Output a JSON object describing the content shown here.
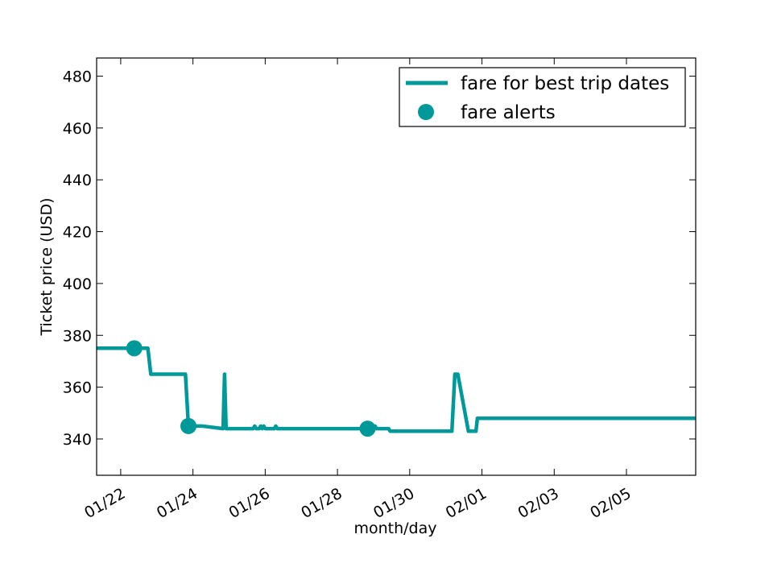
{
  "chart_data": {
    "type": "line",
    "xlabel": "month/day",
    "ylabel": "Ticket price (USD)",
    "xlim": [
      "2015-01-21 08:00",
      "2015-02-06 22:00"
    ],
    "ylim": [
      326,
      487
    ],
    "x_tick_labels": [
      "01/22",
      "01/24",
      "01/26",
      "01/28",
      "01/30",
      "02/01",
      "02/03",
      "02/05"
    ],
    "x_tick_dates": [
      "2015-01-22",
      "2015-01-24",
      "2015-01-26",
      "2015-01-28",
      "2015-01-30",
      "2015-02-01",
      "2015-02-03",
      "2015-02-05"
    ],
    "y_ticks": [
      340,
      360,
      380,
      400,
      420,
      440,
      460,
      480
    ],
    "legend": {
      "position": "top-right",
      "entries": [
        "fare for best trip dates",
        "fare alerts"
      ]
    },
    "color": "#009999",
    "series": [
      {
        "name": "fare for best trip dates",
        "kind": "line",
        "points": [
          {
            "x": "2015-01-21 08:00",
            "y": 375
          },
          {
            "x": "2015-01-22 18:00",
            "y": 375
          },
          {
            "x": "2015-01-22 20:00",
            "y": 365
          },
          {
            "x": "2015-01-23 19:00",
            "y": 365
          },
          {
            "x": "2015-01-23 21:00",
            "y": 345
          },
          {
            "x": "2015-01-24 06:00",
            "y": 345
          },
          {
            "x": "2015-01-24 20:00",
            "y": 344
          },
          {
            "x": "2015-01-24 21:00",
            "y": 365
          },
          {
            "x": "2015-01-24 22:00",
            "y": 344
          },
          {
            "x": "2015-01-25 16:00",
            "y": 344
          },
          {
            "x": "2015-01-25 17:00",
            "y": 345
          },
          {
            "x": "2015-01-25 18:00",
            "y": 344
          },
          {
            "x": "2015-01-25 20:00",
            "y": 344
          },
          {
            "x": "2015-01-25 21:00",
            "y": 345
          },
          {
            "x": "2015-01-25 22:00",
            "y": 344
          },
          {
            "x": "2015-01-25 23:00",
            "y": 345
          },
          {
            "x": "2015-01-26 00:00",
            "y": 344
          },
          {
            "x": "2015-01-26 06:00",
            "y": 344
          },
          {
            "x": "2015-01-26 07:00",
            "y": 345
          },
          {
            "x": "2015-01-26 08:00",
            "y": 344
          },
          {
            "x": "2015-01-29 00:00",
            "y": 344
          },
          {
            "x": "2015-01-29 01:00",
            "y": 345
          },
          {
            "x": "2015-01-29 02:00",
            "y": 344
          },
          {
            "x": "2015-01-29 10:00",
            "y": 344
          },
          {
            "x": "2015-01-29 11:00",
            "y": 343
          },
          {
            "x": "2015-01-31 04:00",
            "y": 343
          },
          {
            "x": "2015-01-31 06:00",
            "y": 365
          },
          {
            "x": "2015-01-31 08:00",
            "y": 365
          },
          {
            "x": "2015-01-31 15:00",
            "y": 343
          },
          {
            "x": "2015-01-31 20:00",
            "y": 343
          },
          {
            "x": "2015-01-31 21:00",
            "y": 348
          },
          {
            "x": "2015-02-06 22:00",
            "y": 348
          }
        ]
      },
      {
        "name": "fare alerts",
        "kind": "marker",
        "points": [
          {
            "x": "2015-01-22 09:00",
            "y": 375
          },
          {
            "x": "2015-01-23 21:00",
            "y": 345
          },
          {
            "x": "2015-01-28 20:00",
            "y": 344
          }
        ]
      }
    ]
  }
}
